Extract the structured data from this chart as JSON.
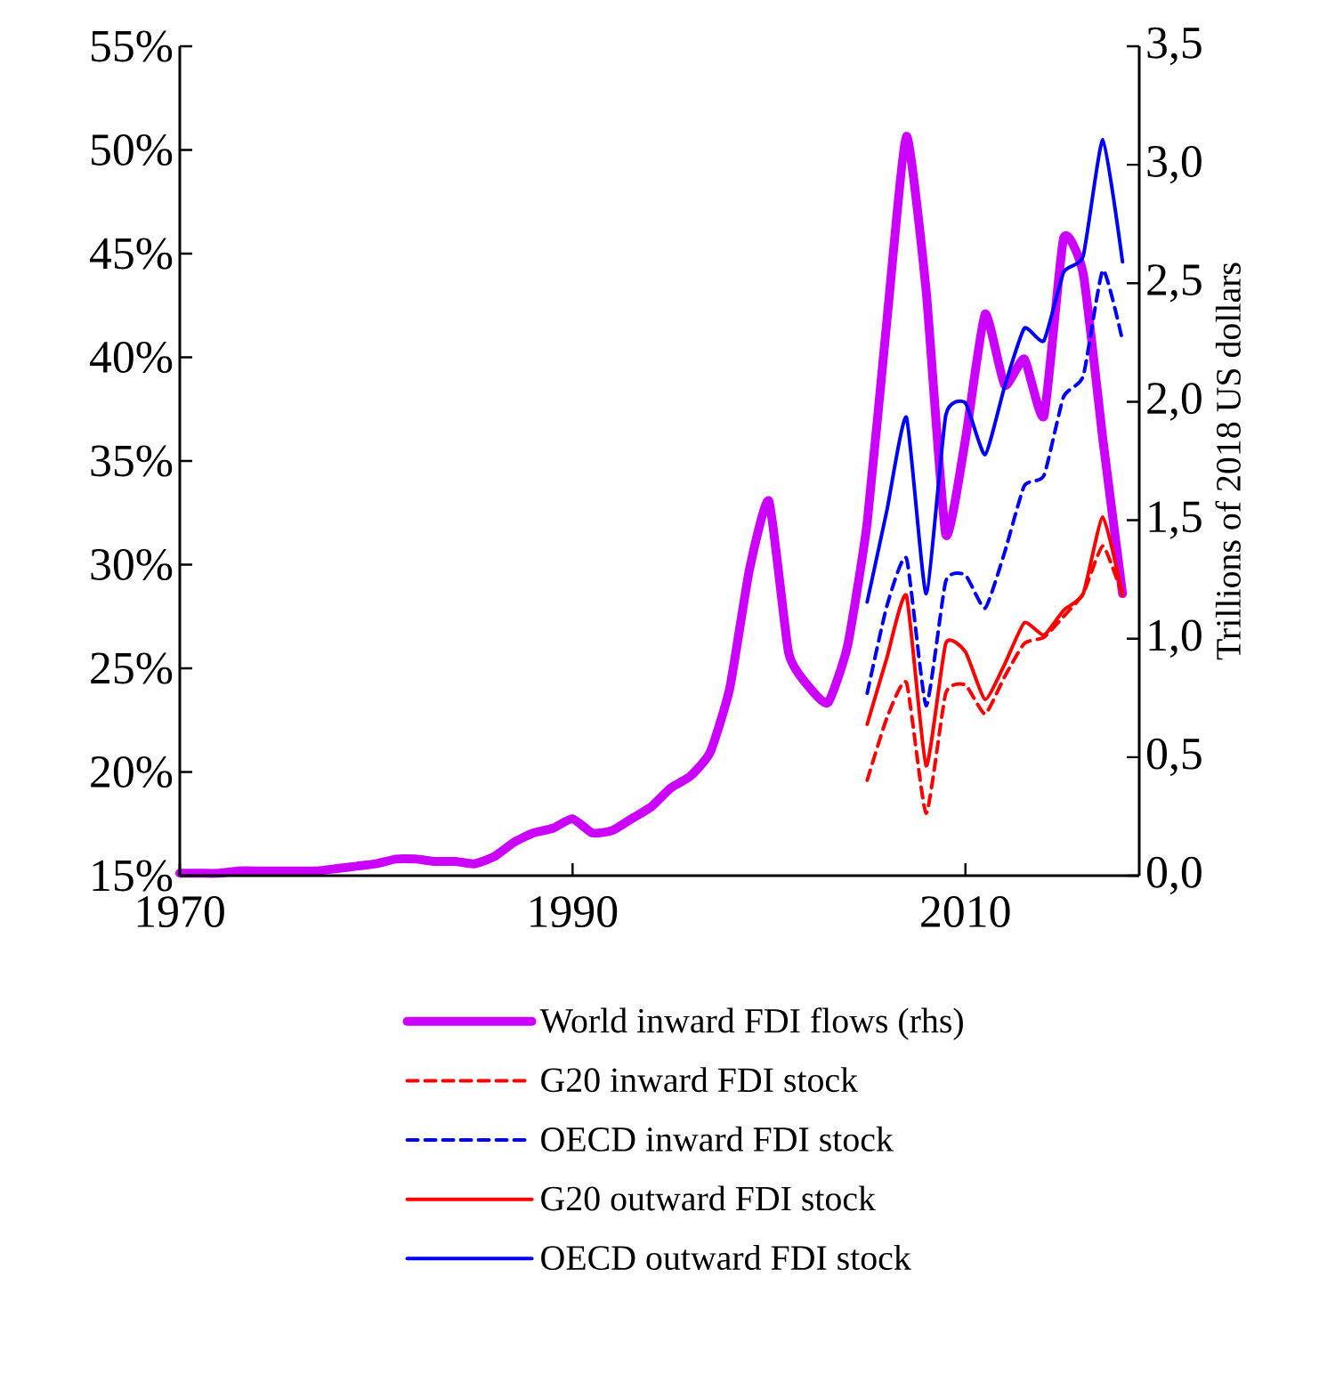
{
  "chart_data": {
    "type": "line",
    "y2label": "Trillions of 2018 US dollars",
    "xlim": [
      1970,
      2018.85
    ],
    "xticks": [
      1970,
      1990,
      2010
    ],
    "ylim": [
      15,
      55
    ],
    "yticks": [
      {
        "value": 15,
        "label": "15%"
      },
      {
        "value": 20,
        "label": "20%"
      },
      {
        "value": 25,
        "label": "25%"
      },
      {
        "value": 30,
        "label": "30%"
      },
      {
        "value": 35,
        "label": "35%"
      },
      {
        "value": 40,
        "label": "40%"
      },
      {
        "value": 45,
        "label": "45%"
      },
      {
        "value": 50,
        "label": "50%"
      },
      {
        "value": 55,
        "label": "55%"
      }
    ],
    "y2lim": [
      0,
      3.5
    ],
    "y2ticks": [
      {
        "value": 0,
        "label": "0,0"
      },
      {
        "value": 0.5,
        "label": "0,5"
      },
      {
        "value": 1,
        "label": "1,0"
      },
      {
        "value": 1.5,
        "label": "1,5"
      },
      {
        "value": 2,
        "label": "2,0"
      },
      {
        "value": 2.5,
        "label": "2,5"
      },
      {
        "value": 3,
        "label": "3,0"
      },
      {
        "value": 3.5,
        "label": "3,5"
      }
    ],
    "legend": "bottom",
    "marker": "none",
    "series": [
      {
        "name": "World inward FDI flows (rhs)",
        "color": "#cc00ff",
        "axis": "y2",
        "line_style": "solid",
        "x": [
          1970,
          1971,
          1972,
          1973,
          1974,
          1975,
          1976,
          1977,
          1978,
          1979,
          1980,
          1981,
          1982,
          1983,
          1984,
          1985,
          1986,
          1987,
          1988,
          1989,
          1990,
          1991,
          1992,
          1993,
          1994,
          1995,
          1996,
          1997,
          1998,
          1999,
          2000,
          2001,
          2002,
          2003,
          2004,
          2005,
          2006,
          2007,
          2008,
          2009,
          2010,
          2011,
          2012,
          2013,
          2014,
          2015,
          2016,
          2017,
          2018
        ],
        "values": [
          0.01,
          0.01,
          0.01,
          0.02,
          0.02,
          0.02,
          0.02,
          0.02,
          0.03,
          0.04,
          0.05,
          0.07,
          0.07,
          0.06,
          0.06,
          0.05,
          0.08,
          0.14,
          0.18,
          0.2,
          0.24,
          0.18,
          0.19,
          0.24,
          0.29,
          0.37,
          0.42,
          0.52,
          0.79,
          1.29,
          1.58,
          0.94,
          0.8,
          0.73,
          0.97,
          1.49,
          2.34,
          3.12,
          2.47,
          1.44,
          1.84,
          2.37,
          2.07,
          2.18,
          1.94,
          2.69,
          2.54,
          1.84,
          1.19
        ]
      },
      {
        "name": "G20 inward FDI stock",
        "color": "#ff0000",
        "line_style": "dashed",
        "x": [
          2005,
          2006,
          2007,
          2008,
          2009,
          2010,
          2011,
          2012,
          2013,
          2014,
          2015,
          2016,
          2017,
          2018
        ],
        "values": [
          19.6,
          22.6,
          24.3,
          18.0,
          23.8,
          24.2,
          22.8,
          24.6,
          26.2,
          26.5,
          27.5,
          28.6,
          30.9,
          28.5
        ]
      },
      {
        "name": "OECD inward FDI stock",
        "color": "#0000ff",
        "line_style": "dashed",
        "x": [
          2005,
          2006,
          2007,
          2008,
          2009,
          2010,
          2011,
          2012,
          2013,
          2014,
          2015,
          2016,
          2017,
          2018
        ],
        "values": [
          23.8,
          28.0,
          30.3,
          23.2,
          29.2,
          29.5,
          27.9,
          30.6,
          33.8,
          34.3,
          38.1,
          39.1,
          44.2,
          40.8
        ]
      },
      {
        "name": "G20 outward FDI stock",
        "color": "#ff0000",
        "line_style": "solid",
        "x": [
          2005,
          2006,
          2007,
          2008,
          2009,
          2010,
          2011,
          2012,
          2013,
          2014,
          2015,
          2016,
          2017,
          2018
        ],
        "values": [
          22.3,
          25.5,
          28.5,
          20.3,
          26.2,
          25.8,
          23.5,
          25.2,
          27.2,
          26.6,
          27.8,
          28.6,
          32.3,
          28.5
        ]
      },
      {
        "name": "OECD outward FDI stock",
        "color": "#0000ff",
        "line_style": "solid",
        "x": [
          2005,
          2006,
          2007,
          2008,
          2009,
          2010,
          2011,
          2012,
          2013,
          2014,
          2015,
          2016,
          2017,
          2018
        ],
        "values": [
          28.2,
          32.6,
          37.1,
          28.6,
          37.2,
          37.8,
          35.3,
          38.6,
          41.4,
          40.8,
          44.1,
          44.9,
          50.5,
          44.6
        ]
      }
    ]
  }
}
